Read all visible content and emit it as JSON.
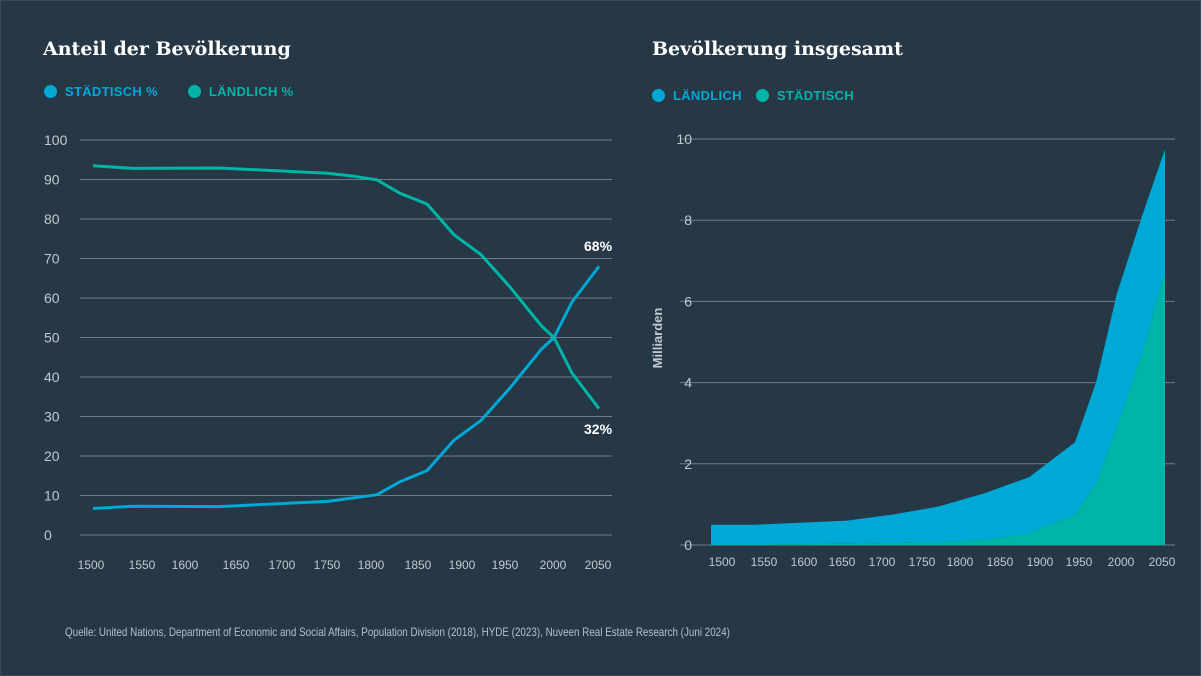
{
  "colors": {
    "background": "#263746",
    "blue": "#00a8d6",
    "teal": "#00b5a6",
    "grid": "#6e7c87",
    "tick": "#c3c9cf"
  },
  "chart_data": [
    {
      "type": "line",
      "title": "Anteil der Bevölkerung",
      "legend": [
        "STÄDTISCH %",
        "LÄNDLICH %"
      ],
      "legend_position": "top-left",
      "ylim": [
        0,
        100
      ],
      "yticks": [
        0,
        10,
        20,
        30,
        40,
        50,
        60,
        70,
        80,
        90,
        100
      ],
      "xticks": [
        1500,
        1550,
        1600,
        1650,
        1700,
        1750,
        1800,
        1850,
        1900,
        1950,
        2000,
        2050
      ],
      "grid": true,
      "series": [
        {
          "name": "STÄDTISCH %",
          "color": "#00a8d6",
          "x": [
            1500,
            1550,
            1650,
            1770,
            1825,
            1850,
            1880,
            1910,
            1940,
            1965,
            1990,
            2000,
            2020,
            2050
          ],
          "y": [
            6.7,
            7.3,
            7.2,
            8.5,
            10.2,
            13.5,
            16.3,
            24,
            29,
            37,
            47,
            50,
            59,
            68
          ]
        },
        {
          "name": "LÄNDLICH %",
          "color": "#00b5a6",
          "x": [
            1500,
            1550,
            1650,
            1770,
            1800,
            1825,
            1850,
            1880,
            1910,
            1940,
            1965,
            1990,
            2000,
            2020,
            2050
          ],
          "y": [
            93.5,
            92.8,
            92.9,
            91.6,
            90.8,
            89.9,
            86.5,
            83.8,
            76,
            71,
            63,
            53,
            50,
            41,
            32
          ]
        }
      ],
      "annotations": [
        "68%",
        "32%"
      ]
    },
    {
      "type": "area",
      "stacked": true,
      "title": "Bevölkerung insgesamt",
      "legend": [
        "LÄNDLICH",
        "STÄDTISCH"
      ],
      "legend_position": "top-left",
      "ylabel": "Milliarden",
      "ylim": [
        0,
        10
      ],
      "yticks": [
        0,
        2,
        4,
        6,
        8,
        10
      ],
      "xticks": [
        1500,
        1550,
        1600,
        1650,
        1700,
        1750,
        1800,
        1850,
        1900,
        1950,
        2000,
        2050
      ],
      "grid": true,
      "x": [
        1500,
        1550,
        1650,
        1700,
        1750,
        1820,
        1880,
        1950,
        1975,
        2000,
        2025,
        2050
      ],
      "total": [
        0.5,
        0.5,
        0.6,
        0.75,
        0.95,
        1.27,
        1.67,
        2.53,
        4.0,
        6.2,
        8.1,
        9.75
      ],
      "series": [
        {
          "name": "STÄDTISCH",
          "color": "#00b5a6",
          "values": [
            0.0,
            0.01,
            0.03,
            0.05,
            0.07,
            0.12,
            0.28,
            0.75,
            1.5,
            2.9,
            4.7,
            6.7
          ]
        },
        {
          "name": "LÄNDLICH",
          "color": "#00a8d6",
          "values": [
            0.5,
            0.49,
            0.57,
            0.7,
            0.88,
            1.15,
            1.39,
            1.78,
            2.5,
            3.3,
            3.4,
            3.05
          ]
        }
      ]
    }
  ],
  "source": "Quelle: United Nations, Department of Economic and Social Affairs, Population Division (2018), HYDE (2023), Nuveen Real Estate Research (Juni 2024)"
}
